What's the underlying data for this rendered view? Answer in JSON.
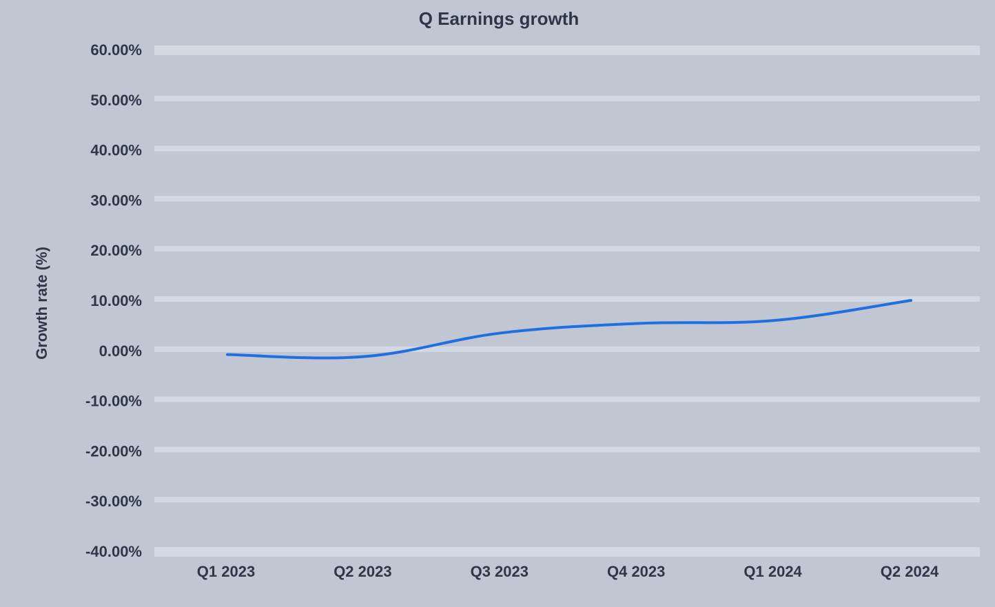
{
  "chart_data": {
    "type": "line",
    "title": "Q Earnings growth",
    "xlabel": "",
    "ylabel": "Growth rate (%)",
    "categories": [
      "Q1 2023",
      "Q2 2023",
      "Q3 2023",
      "Q4 2023",
      "Q1 2024",
      "Q2 2024"
    ],
    "series": [
      {
        "name": "Earnings growth",
        "color": "#1f6fe0",
        "values": [
          -0.8,
          -1.2,
          3.5,
          5.4,
          6.0,
          10.0
        ]
      }
    ],
    "ylim": [
      -40,
      60
    ],
    "yticks": [
      -40,
      -30,
      -20,
      -10,
      0,
      10,
      20,
      30,
      40,
      50,
      60
    ],
    "ytick_labels": [
      "-40.00%",
      "-30.00%",
      "-20.00%",
      "-10.00%",
      "0.00%",
      "10.00%",
      "20.00%",
      "30.00%",
      "40.00%",
      "50.00%",
      "60.00%"
    ],
    "grid": true,
    "legend": "none"
  },
  "colors": {
    "background": "#c0c7d2",
    "grid": "#d3d9e2",
    "text": "#2d3748",
    "line": "#1f6fe0"
  }
}
